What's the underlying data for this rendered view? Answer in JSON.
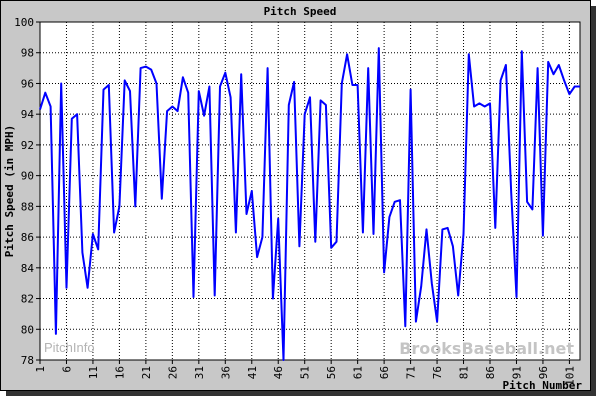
{
  "chart_data": {
    "type": "line",
    "title": "Pitch Speed",
    "ylabel": "Pitch Speed (in MPH)",
    "xlabel": "Pitch Number",
    "ylim": [
      78,
      100
    ],
    "xlim": [
      1,
      103
    ],
    "y_ticks": [
      78,
      80,
      82,
      84,
      86,
      88,
      90,
      92,
      94,
      96,
      98,
      100
    ],
    "x_ticks": [
      1,
      6,
      11,
      16,
      21,
      26,
      31,
      36,
      41,
      46,
      51,
      56,
      61,
      66,
      71,
      76,
      81,
      86,
      91,
      96,
      101
    ],
    "grid": true,
    "line_color": "#0000ff",
    "watermark_left": "PitchInfo",
    "watermark_right": "BrooksBaseball.net",
    "series": [
      {
        "x": [
          1,
          2,
          3,
          4,
          5,
          6,
          7,
          8,
          9,
          10,
          11,
          12,
          13,
          14,
          15,
          16,
          17,
          18,
          19,
          20,
          21,
          22,
          23,
          24,
          25,
          26,
          27,
          28,
          29,
          30,
          31,
          32,
          33,
          34,
          35,
          36,
          37,
          38,
          39,
          40,
          41,
          42,
          43,
          44,
          45,
          46,
          47,
          48,
          49,
          50,
          51,
          52,
          53,
          54,
          55,
          56,
          57,
          58,
          59,
          60,
          61,
          62,
          63,
          64,
          65,
          66,
          67,
          68,
          69,
          70,
          71,
          72,
          73,
          74,
          75,
          76,
          77,
          78,
          79,
          80,
          81,
          82,
          83,
          84,
          85,
          86,
          87,
          88,
          89,
          90,
          91,
          92,
          93,
          94,
          95,
          96,
          97,
          98,
          99,
          100,
          101,
          102,
          103
        ],
        "values": [
          94.3,
          95.4,
          94.5,
          79.7,
          96.0,
          82.7,
          93.7,
          94.0,
          85.0,
          82.7,
          86.2,
          85.2,
          95.6,
          95.9,
          86.3,
          88.0,
          96.2,
          95.5,
          88.0,
          97.0,
          97.1,
          96.9,
          96.0,
          88.5,
          94.2,
          94.5,
          94.2,
          96.4,
          95.4,
          82.1,
          95.5,
          93.9,
          95.8,
          82.2,
          95.8,
          96.7,
          95.1,
          86.3,
          96.6,
          87.5,
          89.0,
          84.7,
          86.0,
          97.0,
          82.0,
          87.2,
          78.0,
          94.6,
          96.1,
          85.4,
          94.0,
          95.1,
          85.7,
          94.9,
          94.6,
          85.3,
          85.7,
          96.0,
          97.9,
          95.9,
          95.9,
          86.3,
          97.0,
          86.2,
          98.3,
          83.7,
          87.3,
          88.3,
          88.4,
          80.2,
          95.6,
          80.5,
          82.8,
          86.5,
          83.0,
          80.5,
          86.5,
          86.6,
          85.4,
          82.2,
          86.2,
          97.9,
          94.5,
          94.7,
          94.5,
          94.7,
          86.6,
          96.2,
          97.2,
          88.9,
          82.1,
          98.1,
          88.3,
          87.8,
          97.0,
          86.1,
          97.4,
          96.6,
          97.2,
          96.2,
          95.3,
          95.8,
          95.8
        ]
      }
    ]
  }
}
